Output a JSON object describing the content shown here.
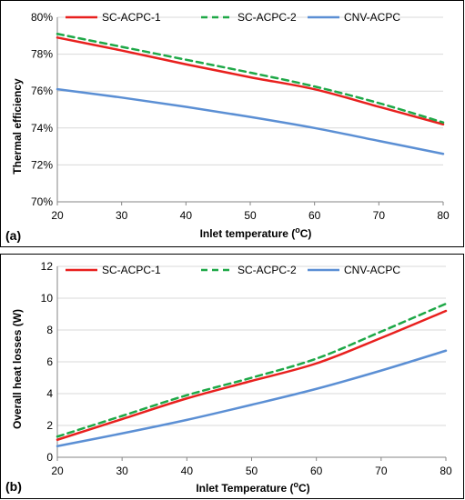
{
  "chart_data": [
    {
      "type": "line",
      "panel_tag": "(a)",
      "xlabel": "Inlet temperature (oC)",
      "xlabel_main": "Inlet temperature (",
      "xlabel_sup": "o",
      "xlabel_end": "C)",
      "ylabel": "Thermal efficiency",
      "xlim": [
        20,
        80
      ],
      "ylim": [
        70,
        80
      ],
      "x_ticks": [
        20,
        30,
        40,
        50,
        60,
        70,
        80
      ],
      "y_ticks": [
        70,
        72,
        74,
        76,
        78,
        80
      ],
      "y_tick_labels": [
        "70%",
        "72%",
        "74%",
        "76%",
        "78%",
        "80%"
      ],
      "grid": true,
      "legend_position": "top",
      "series": [
        {
          "name": "SC-ACPC-1",
          "color": "#e8201e",
          "dash": "solid",
          "x": [
            20,
            30,
            40,
            50,
            60,
            70,
            80
          ],
          "y": [
            78.9,
            78.2,
            77.45,
            76.75,
            76.1,
            75.15,
            74.2
          ]
        },
        {
          "name": "SC-ACPC-2",
          "color": "#1ea847",
          "dash": "dashed",
          "x": [
            20,
            30,
            40,
            50,
            60,
            70,
            80
          ],
          "y": [
            79.1,
            78.4,
            77.7,
            77.0,
            76.25,
            75.35,
            74.3
          ]
        },
        {
          "name": "CNV-ACPC",
          "color": "#5b8fd4",
          "dash": "solid",
          "x": [
            20,
            30,
            40,
            50,
            60,
            70,
            80
          ],
          "y": [
            76.1,
            75.65,
            75.15,
            74.6,
            74.0,
            73.3,
            72.6
          ]
        }
      ]
    },
    {
      "type": "line",
      "panel_tag": "(b)",
      "xlabel": "Inlet Temperature (oC)",
      "xlabel_main": "Inlet Temperature (",
      "xlabel_sup": "o",
      "xlabel_end": "C)",
      "ylabel": "Overall heat losses (W)",
      "xlim": [
        20,
        80
      ],
      "ylim": [
        0,
        12
      ],
      "x_ticks": [
        20,
        30,
        40,
        50,
        60,
        70,
        80
      ],
      "y_ticks": [
        0,
        2,
        4,
        6,
        8,
        10,
        12
      ],
      "y_tick_labels": [
        "0",
        "2",
        "4",
        "6",
        "8",
        "10",
        "12"
      ],
      "grid": true,
      "legend_position": "top",
      "series": [
        {
          "name": "SC-ACPC-1",
          "color": "#e8201e",
          "dash": "solid",
          "x": [
            20,
            30,
            40,
            50,
            60,
            70,
            80
          ],
          "y": [
            1.1,
            2.4,
            3.7,
            4.8,
            5.9,
            7.5,
            9.2
          ]
        },
        {
          "name": "SC-ACPC-2",
          "color": "#1ea847",
          "dash": "dashed",
          "x": [
            20,
            30,
            40,
            50,
            60,
            70,
            80
          ],
          "y": [
            1.3,
            2.6,
            3.9,
            5.0,
            6.2,
            7.9,
            9.65
          ]
        },
        {
          "name": "CNV-ACPC",
          "color": "#5b8fd4",
          "dash": "solid",
          "x": [
            20,
            30,
            40,
            50,
            60,
            70,
            80
          ],
          "y": [
            0.7,
            1.5,
            2.35,
            3.3,
            4.3,
            5.45,
            6.7
          ]
        }
      ]
    }
  ]
}
